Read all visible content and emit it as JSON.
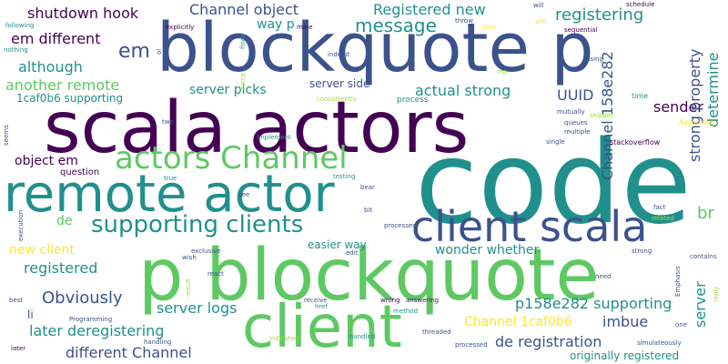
{
  "colors": {
    "background": "#ffffff",
    "dark_purple": "#440154",
    "indigo": "#3b528b",
    "teal": "#21908c",
    "green": "#5ec962",
    "yellow": "#fde725",
    "light_green": "#a0da39"
  },
  "words": [
    "code",
    "scala actors",
    "blockquote p",
    "p blockquote",
    "remote actor",
    "client",
    "client scala",
    "actors Channel",
    "supporting clients",
    "shutdown hook",
    "Channel object",
    "Registered new",
    "registering",
    "em different",
    "em",
    "message",
    "although",
    "another remote",
    "1caf0b6 supporting",
    "server picks",
    "UUID",
    "actual strong",
    "sender",
    "Channel 158e282",
    "strong property",
    "determine",
    "object em",
    "de",
    "br",
    "new client",
    "registered",
    "Obviously",
    "server logs",
    "p158e282 supporting",
    "server",
    "later deregistering",
    "Channel 1caf0b6",
    "imbue",
    "de registration",
    "different Channel",
    "originally registered",
    "easier way",
    "wonder whether",
    "li",
    "question",
    "way p",
    "server side",
    "process",
    "concurrently",
    "stackoverflow",
    "mutually",
    "queues",
    "multiple",
    "single",
    "snippet",
    "Assuming",
    "time",
    "schedule",
    "sequential",
    "using",
    "explicitly",
    "following",
    "nothing",
    "finds",
    "indeed",
    "mine",
    "says",
    "still",
    "throw",
    "will",
    "bit",
    "bear",
    "testing",
    "true",
    "two",
    "implement",
    "force",
    "see",
    "exclusive",
    "wish",
    "react",
    "result",
    "best",
    "execution",
    "seems",
    "handled",
    "method",
    "receive",
    "wrong",
    "answering",
    "edit",
    "href",
    "indicated",
    "threaded",
    "processed",
    "handling",
    "later",
    "Programming",
    "strong",
    "need",
    "related",
    "fact",
    "contains",
    "Emphasis",
    "reply",
    "one",
    "simulateously",
    "processes",
    "oi",
    "mp"
  ]
}
